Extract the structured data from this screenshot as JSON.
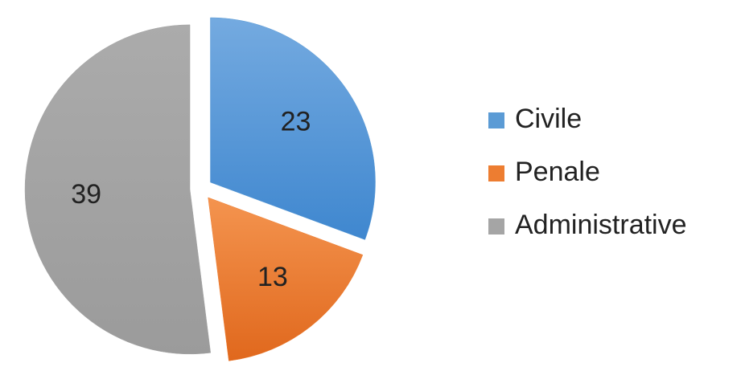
{
  "chart_data": {
    "type": "pie",
    "categories": [
      "Civile",
      "Penale",
      "Administrative"
    ],
    "values": [
      23,
      13,
      39
    ],
    "colors": [
      "#5b9bd5",
      "#ed7d31",
      "#a5a5a5"
    ],
    "legend": "right"
  }
}
